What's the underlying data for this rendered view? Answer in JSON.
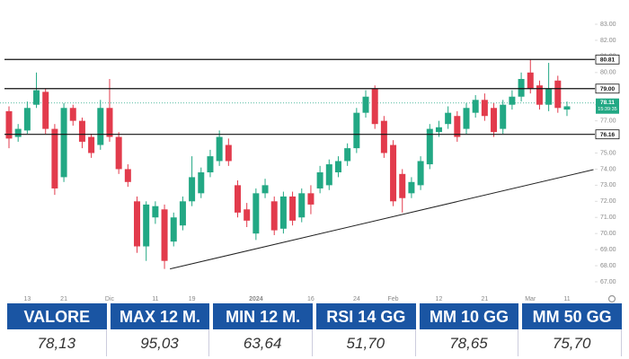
{
  "chart_data": {
    "type": "candlestick",
    "categories": [
      null,
      null,
      "13",
      null,
      null,
      null,
      "21",
      null,
      null,
      null,
      null,
      "Dic",
      null,
      null,
      null,
      null,
      "11",
      null,
      null,
      null,
      "19",
      null,
      null,
      null,
      null,
      null,
      null,
      "2024",
      null,
      null,
      null,
      null,
      null,
      "16",
      null,
      null,
      null,
      null,
      "24",
      null,
      null,
      null,
      "Feb",
      null,
      null,
      null,
      null,
      "12",
      null,
      null,
      null,
      null,
      "21",
      null,
      null,
      null,
      null,
      "Mar",
      null,
      null,
      null,
      "11"
    ],
    "open": [
      77.6,
      76.0,
      76.4,
      78.0,
      78.8,
      76.5,
      73.5,
      77.8,
      77.0,
      76.0,
      75.5,
      77.8,
      76.0,
      74.0,
      72.0,
      69.2,
      71.0,
      71.5,
      69.5,
      70.5,
      72.0,
      72.5,
      73.8,
      74.5,
      75.5,
      73.0,
      71.5,
      70.0,
      72.5,
      72.0,
      70.3,
      72.3,
      71.0,
      72.5,
      72.8,
      73.0,
      73.8,
      74.5,
      75.3,
      77.5,
      79.0,
      77.0,
      75.5,
      73.7,
      72.5,
      73.0,
      74.3,
      76.3,
      76.8,
      77.3,
      76.5,
      77.5,
      78.3,
      77.8,
      76.5,
      78.0,
      78.5,
      80.0,
      79.2,
      78.0,
      79.5,
      77.7
    ],
    "high": [
      77.9,
      76.8,
      78.2,
      80.0,
      79.0,
      76.8,
      78.1,
      78.0,
      77.2,
      76.2,
      78.3,
      79.6,
      76.3,
      74.3,
      72.3,
      72.0,
      72.0,
      71.8,
      71.3,
      72.3,
      74.8,
      74.1,
      75.2,
      76.4,
      75.9,
      73.3,
      71.9,
      72.8,
      73.4,
      72.3,
      72.6,
      72.6,
      72.8,
      73.0,
      74.2,
      74.6,
      74.8,
      75.6,
      77.8,
      78.9,
      79.2,
      77.3,
      75.8,
      74.0,
      73.5,
      74.8,
      76.8,
      77.0,
      77.9,
      77.6,
      78.1,
      78.6,
      78.7,
      78.1,
      78.3,
      78.9,
      80.0,
      80.8,
      79.5,
      80.6,
      79.8,
      78.2
    ],
    "low": [
      75.3,
      75.7,
      76.2,
      77.8,
      76.2,
      72.4,
      73.2,
      76.7,
      75.3,
      74.7,
      75.2,
      75.7,
      73.7,
      72.9,
      68.8,
      68.3,
      70.6,
      67.8,
      69.2,
      70.2,
      71.7,
      72.2,
      73.5,
      74.2,
      74.2,
      71.0,
      70.4,
      69.6,
      72.2,
      69.9,
      70.0,
      70.5,
      70.7,
      71.2,
      72.5,
      72.7,
      73.5,
      74.2,
      75.0,
      77.2,
      76.5,
      74.7,
      71.7,
      71.3,
      72.2,
      72.7,
      74.0,
      76.0,
      76.5,
      75.7,
      76.2,
      77.2,
      77.0,
      76.0,
      76.2,
      77.7,
      78.2,
      78.7,
      77.7,
      77.6,
      77.5,
      77.3
    ],
    "close": [
      75.9,
      76.5,
      77.8,
      78.9,
      76.5,
      72.8,
      77.8,
      77.0,
      75.7,
      75.0,
      77.8,
      76.0,
      74.0,
      73.2,
      69.2,
      71.8,
      71.7,
      68.3,
      71.0,
      72.0,
      73.5,
      73.8,
      74.8,
      76.0,
      74.5,
      71.3,
      70.8,
      72.5,
      73.0,
      70.2,
      72.3,
      70.8,
      72.5,
      71.8,
      73.8,
      74.3,
      74.5,
      75.3,
      77.5,
      78.5,
      76.8,
      75.0,
      72.0,
      72.2,
      73.2,
      74.5,
      76.5,
      76.6,
      77.5,
      76.0,
      77.8,
      78.3,
      77.3,
      76.3,
      78.0,
      78.5,
      79.6,
      79.0,
      78.0,
      79.0,
      77.8,
      77.9
    ],
    "up_color": "#22a884",
    "down_color": "#e23b4c",
    "ylim": [
      67,
      83
    ],
    "yticks": [
      {
        "value": 67,
        "label": "67.00"
      },
      {
        "value": 68,
        "label": "68.00"
      },
      {
        "value": 69,
        "label": "69.00"
      },
      {
        "value": 70,
        "label": "70.00"
      },
      {
        "value": 71,
        "label": "71.00"
      },
      {
        "value": 72,
        "label": "72.00"
      },
      {
        "value": 73,
        "label": "73.00"
      },
      {
        "value": 74,
        "label": "74.00"
      },
      {
        "value": 75,
        "label": "75.00"
      },
      {
        "value": 76,
        "label": "76.00"
      },
      {
        "value": 77,
        "label": "77.00"
      },
      {
        "value": 78,
        "label": "78.00"
      },
      {
        "value": 79,
        "label": "79.00"
      },
      {
        "value": 80,
        "label": "80.00"
      },
      {
        "value": 81,
        "label": "81.00"
      },
      {
        "value": 82,
        "label": "82.00"
      },
      {
        "value": 83,
        "label": "83.00"
      }
    ],
    "levels": [
      80.81,
      {
        "value": 79,
        "label": "79.00"
      },
      76.16
    ],
    "current_price": 78.11,
    "countdown": "15:39:35",
    "trend_line": [
      [
        17.6,
        67.8
      ],
      [
        63.9,
        73.97
      ]
    ]
  },
  "table": {
    "header": [
      "VALORE",
      "MAX 12 M.",
      "MIN 12 M.",
      "RSI 14 GG",
      "MM 10 GG",
      "MM 50 GG"
    ],
    "values": [
      "78,13",
      "95,03",
      "63,64",
      "51,70",
      "78,65",
      "75,70"
    ]
  }
}
